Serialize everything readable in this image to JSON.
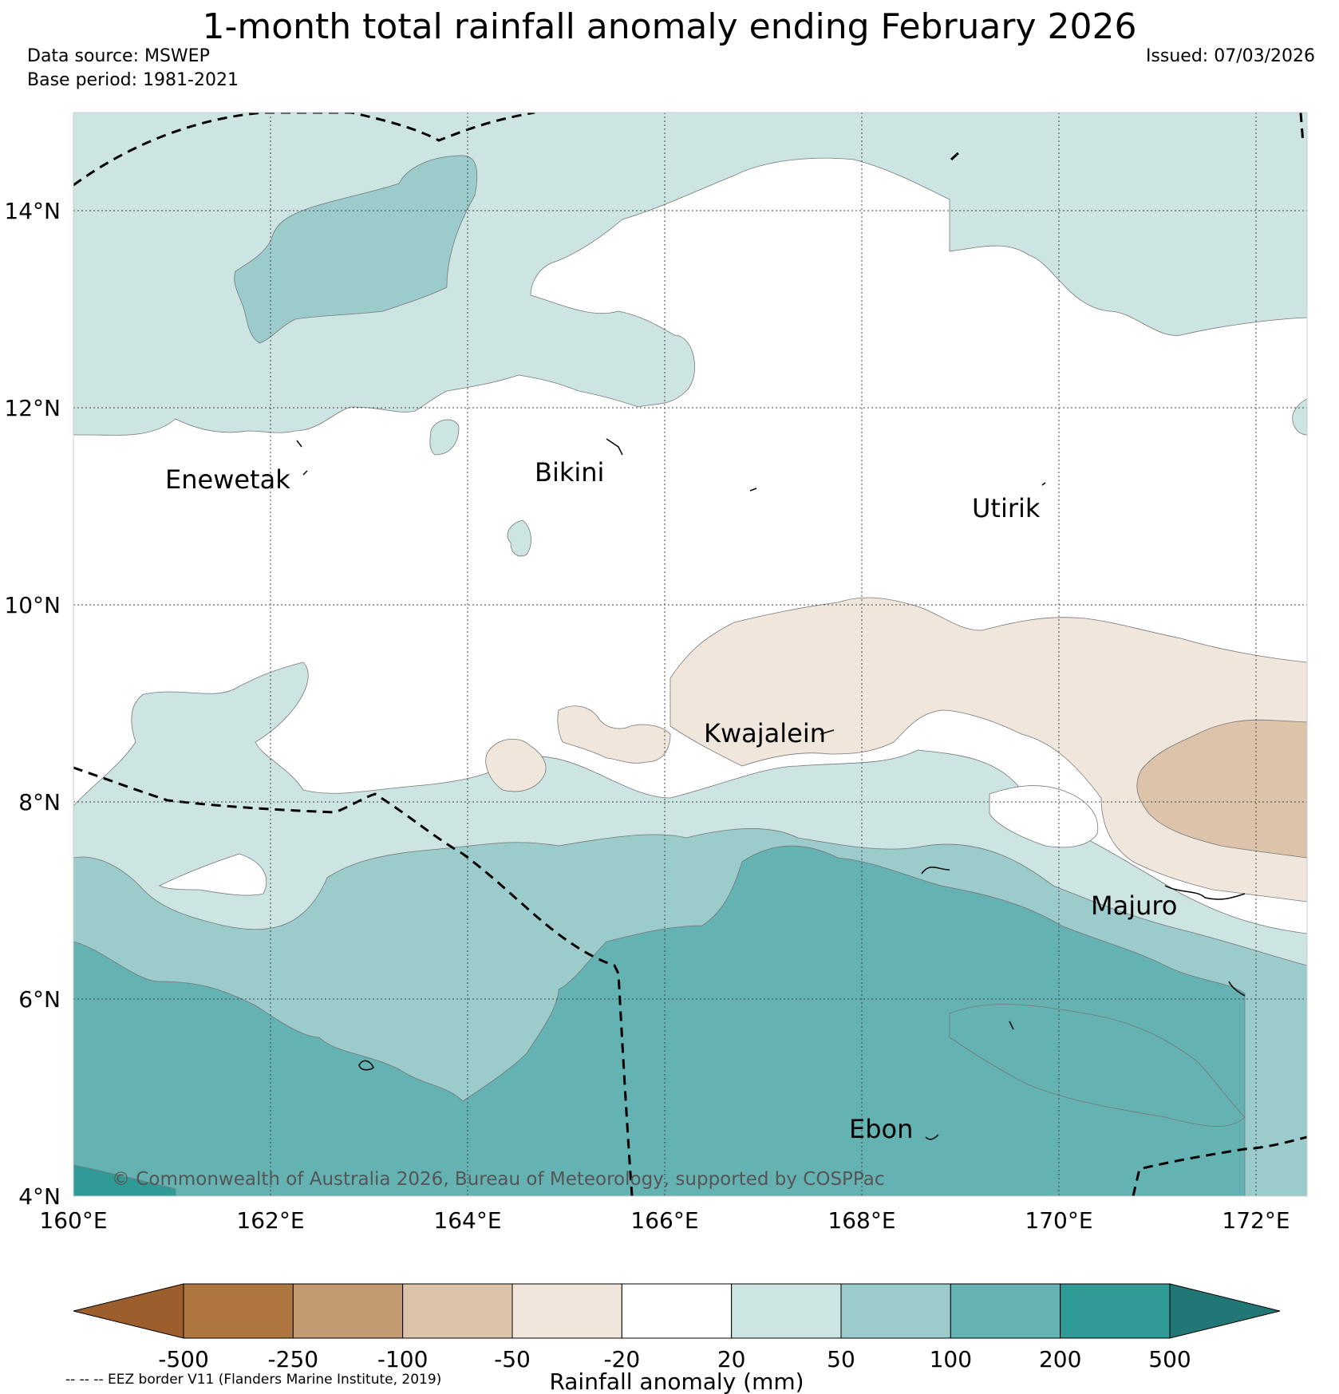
{
  "header": {
    "title": "1-month total rainfall anomaly ending February 2026",
    "data_source": "Data source: MSWEP",
    "base_period": "Base period: 1981-2021",
    "issued": "Issued: 07/03/2026"
  },
  "axes": {
    "lat_labels": [
      "14°N",
      "12°N",
      "10°N",
      "8°N",
      "6°N",
      "4°N"
    ],
    "lon_labels": [
      "160°E",
      "162°E",
      "164°E",
      "166°E",
      "168°E",
      "170°E",
      "172°E"
    ]
  },
  "places": [
    {
      "name": "Enewetak"
    },
    {
      "name": "Bikini"
    },
    {
      "name": "Utirik"
    },
    {
      "name": "Kwajalein"
    },
    {
      "name": "Majuro"
    },
    {
      "name": "Ebon"
    }
  ],
  "copyright": "© Commonwealth of Australia 2026, Bureau of Meteorology, supported by COSPPac",
  "colorbar": {
    "ticks": [
      "-500",
      "-250",
      "-100",
      "-50",
      "-20",
      "20",
      "50",
      "100",
      "200",
      "500"
    ],
    "colors": [
      "#9b5e2c",
      "#ad763f",
      "#c39a72",
      "#dcc3aa",
      "#f1e6dc",
      "#ffffff",
      "#cce5e3",
      "#9ccbcb",
      "#65b2b2",
      "#309a97",
      "#217775"
    ],
    "label": "Rainfall anomaly (mm)"
  },
  "footnote": "-- -- -- EEZ border V11 (Flanders Marine Institute, 2019)"
}
